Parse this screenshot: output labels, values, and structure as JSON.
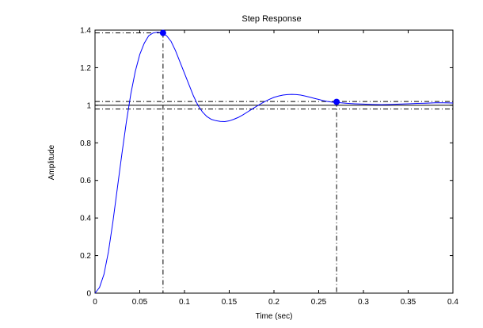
{
  "chart_data": {
    "type": "line",
    "title": "Step Response",
    "xlabel": "Time (sec)",
    "ylabel": "Amplitude",
    "xlim": [
      0,
      0.4
    ],
    "ylim": [
      0,
      1.4
    ],
    "grid": false,
    "xticks": [
      0,
      0.05,
      0.1,
      0.15,
      0.2,
      0.25,
      0.3,
      0.35,
      0.4
    ],
    "xtick_labels": [
      "0",
      "0.05",
      "0.1",
      "0.15",
      "0.2",
      "0.25",
      "0.3",
      "0.35",
      "0.4"
    ],
    "yticks": [
      0,
      0.2,
      0.4,
      0.6,
      0.8,
      1,
      1.2,
      1.4
    ],
    "ytick_labels": [
      "0",
      "0.2",
      "0.4",
      "0.6",
      "0.8",
      "1",
      "1.2",
      "1.4"
    ],
    "series": [
      {
        "color": "#0000ff",
        "x": [
          0,
          0.005,
          0.01,
          0.015,
          0.02,
          0.025,
          0.03,
          0.035,
          0.04,
          0.045,
          0.05,
          0.055,
          0.06,
          0.065,
          0.07,
          0.075,
          0.08,
          0.085,
          0.09,
          0.095,
          0.1,
          0.105,
          0.11,
          0.115,
          0.12,
          0.125,
          0.13,
          0.135,
          0.14,
          0.145,
          0.15,
          0.155,
          0.16,
          0.165,
          0.17,
          0.175,
          0.18,
          0.185,
          0.19,
          0.195,
          0.2,
          0.205,
          0.21,
          0.215,
          0.22,
          0.225,
          0.23,
          0.235,
          0.24,
          0.245,
          0.25,
          0.255,
          0.26,
          0.265,
          0.27,
          0.275,
          0.28,
          0.29,
          0.3,
          0.31,
          0.32,
          0.33,
          0.34,
          0.35,
          0.36,
          0.37,
          0.38,
          0.39,
          0.4
        ],
        "y": [
          0,
          0.03,
          0.1,
          0.22,
          0.38,
          0.56,
          0.74,
          0.91,
          1.06,
          1.18,
          1.27,
          1.33,
          1.37,
          1.385,
          1.389,
          1.385,
          1.37,
          1.34,
          1.29,
          1.23,
          1.17,
          1.11,
          1.05,
          1.0,
          0.965,
          0.94,
          0.925,
          0.918,
          0.914,
          0.913,
          0.917,
          0.925,
          0.935,
          0.948,
          0.963,
          0.978,
          0.993,
          1.007,
          1.02,
          1.032,
          1.042,
          1.049,
          1.054,
          1.057,
          1.058,
          1.057,
          1.054,
          1.049,
          1.043,
          1.037,
          1.031,
          1.025,
          1.02,
          1.017,
          1.015,
          1.013,
          1.011,
          1.008,
          1.006,
          1.004,
          1.003,
          1.004,
          1.006,
          1.008,
          1.01,
          1.011,
          1.013,
          1.013,
          1.012
        ]
      }
    ],
    "reference_lines": {
      "final_value": 1.0,
      "settling_band": [
        0.98,
        1.02
      ],
      "peak": {
        "x": 0.076,
        "y": 1.385
      },
      "settling_point": {
        "x": 0.27,
        "y": 1.018
      }
    }
  }
}
